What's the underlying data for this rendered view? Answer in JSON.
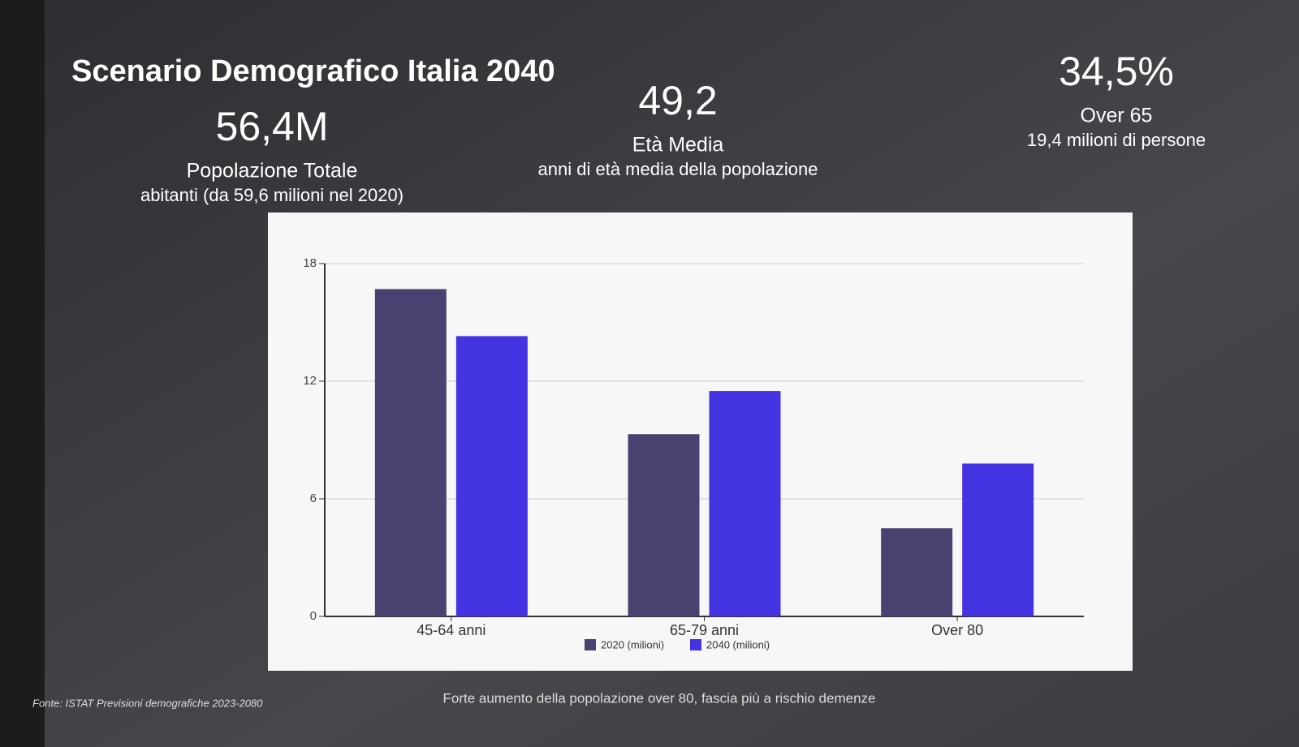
{
  "slide": {
    "title": "Scenario Demografico Italia 2040",
    "stats": [
      {
        "value": "56,4M",
        "label": "Popolazione Totale",
        "sublabel": "abitanti (da 59,6 milioni nel 2020)"
      },
      {
        "value": "49,2",
        "label": "Età Media",
        "sublabel": "anni di età media della popolazione"
      },
      {
        "value": "34,5%",
        "label": "Over 65",
        "sublabel": "19,4 milioni di persone"
      }
    ],
    "source": "Fonte: ISTAT Previsioni demografiche 2023-2080",
    "footnote": "Forte aumento della popolazione over 80, fascia più a rischio demenze"
  },
  "chart_data": {
    "type": "bar",
    "categories": [
      "45-64 anni",
      "65-79 anni",
      "Over 80"
    ],
    "series": [
      {
        "name": "2020 (milioni)",
        "color": "#4b4170",
        "values": [
          16.7,
          9.3,
          4.5
        ]
      },
      {
        "name": "2040 (milioni)",
        "color": "#4433e0",
        "values": [
          14.3,
          11.5,
          7.8
        ]
      }
    ],
    "ylim": [
      0,
      18
    ],
    "yticks": [
      0,
      6,
      12,
      18
    ],
    "grid": true
  }
}
